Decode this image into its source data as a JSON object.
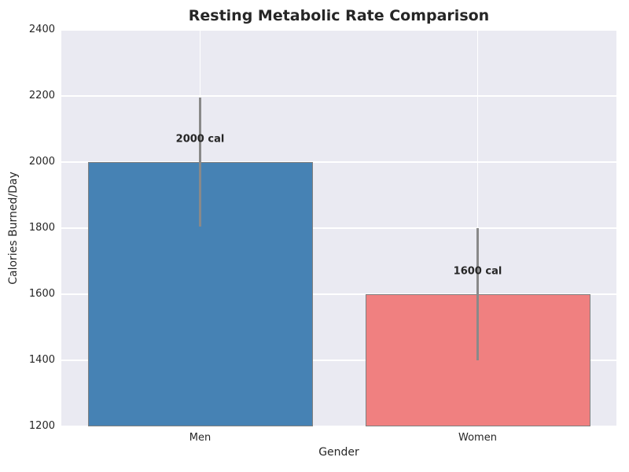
{
  "chart_data": {
    "type": "bar",
    "title": "Resting Metabolic Rate Comparison",
    "xlabel": "Gender",
    "ylabel": "Calories Burned/Day",
    "ylim": [
      1200,
      2400
    ],
    "yticks": [
      1200,
      1400,
      1600,
      1800,
      2000,
      2200,
      2400
    ],
    "categories": [
      "Men",
      "Women"
    ],
    "values": [
      2000,
      1600
    ],
    "bar_labels": [
      "2000 cal",
      "1600 cal"
    ],
    "error_bars": [
      {
        "low": 1805,
        "high": 2195
      },
      {
        "low": 1400,
        "high": 1800
      }
    ],
    "grid": true,
    "legend": "none",
    "colors": {
      "bars": [
        "#4682b4",
        "#f08080"
      ],
      "bar_edge": "#7f7f7f",
      "error_bar": "#898989",
      "plot_background": "#eaeaf2",
      "grid": "#ffffff",
      "text": "#262626",
      "figure_background": "#ffffff"
    }
  }
}
